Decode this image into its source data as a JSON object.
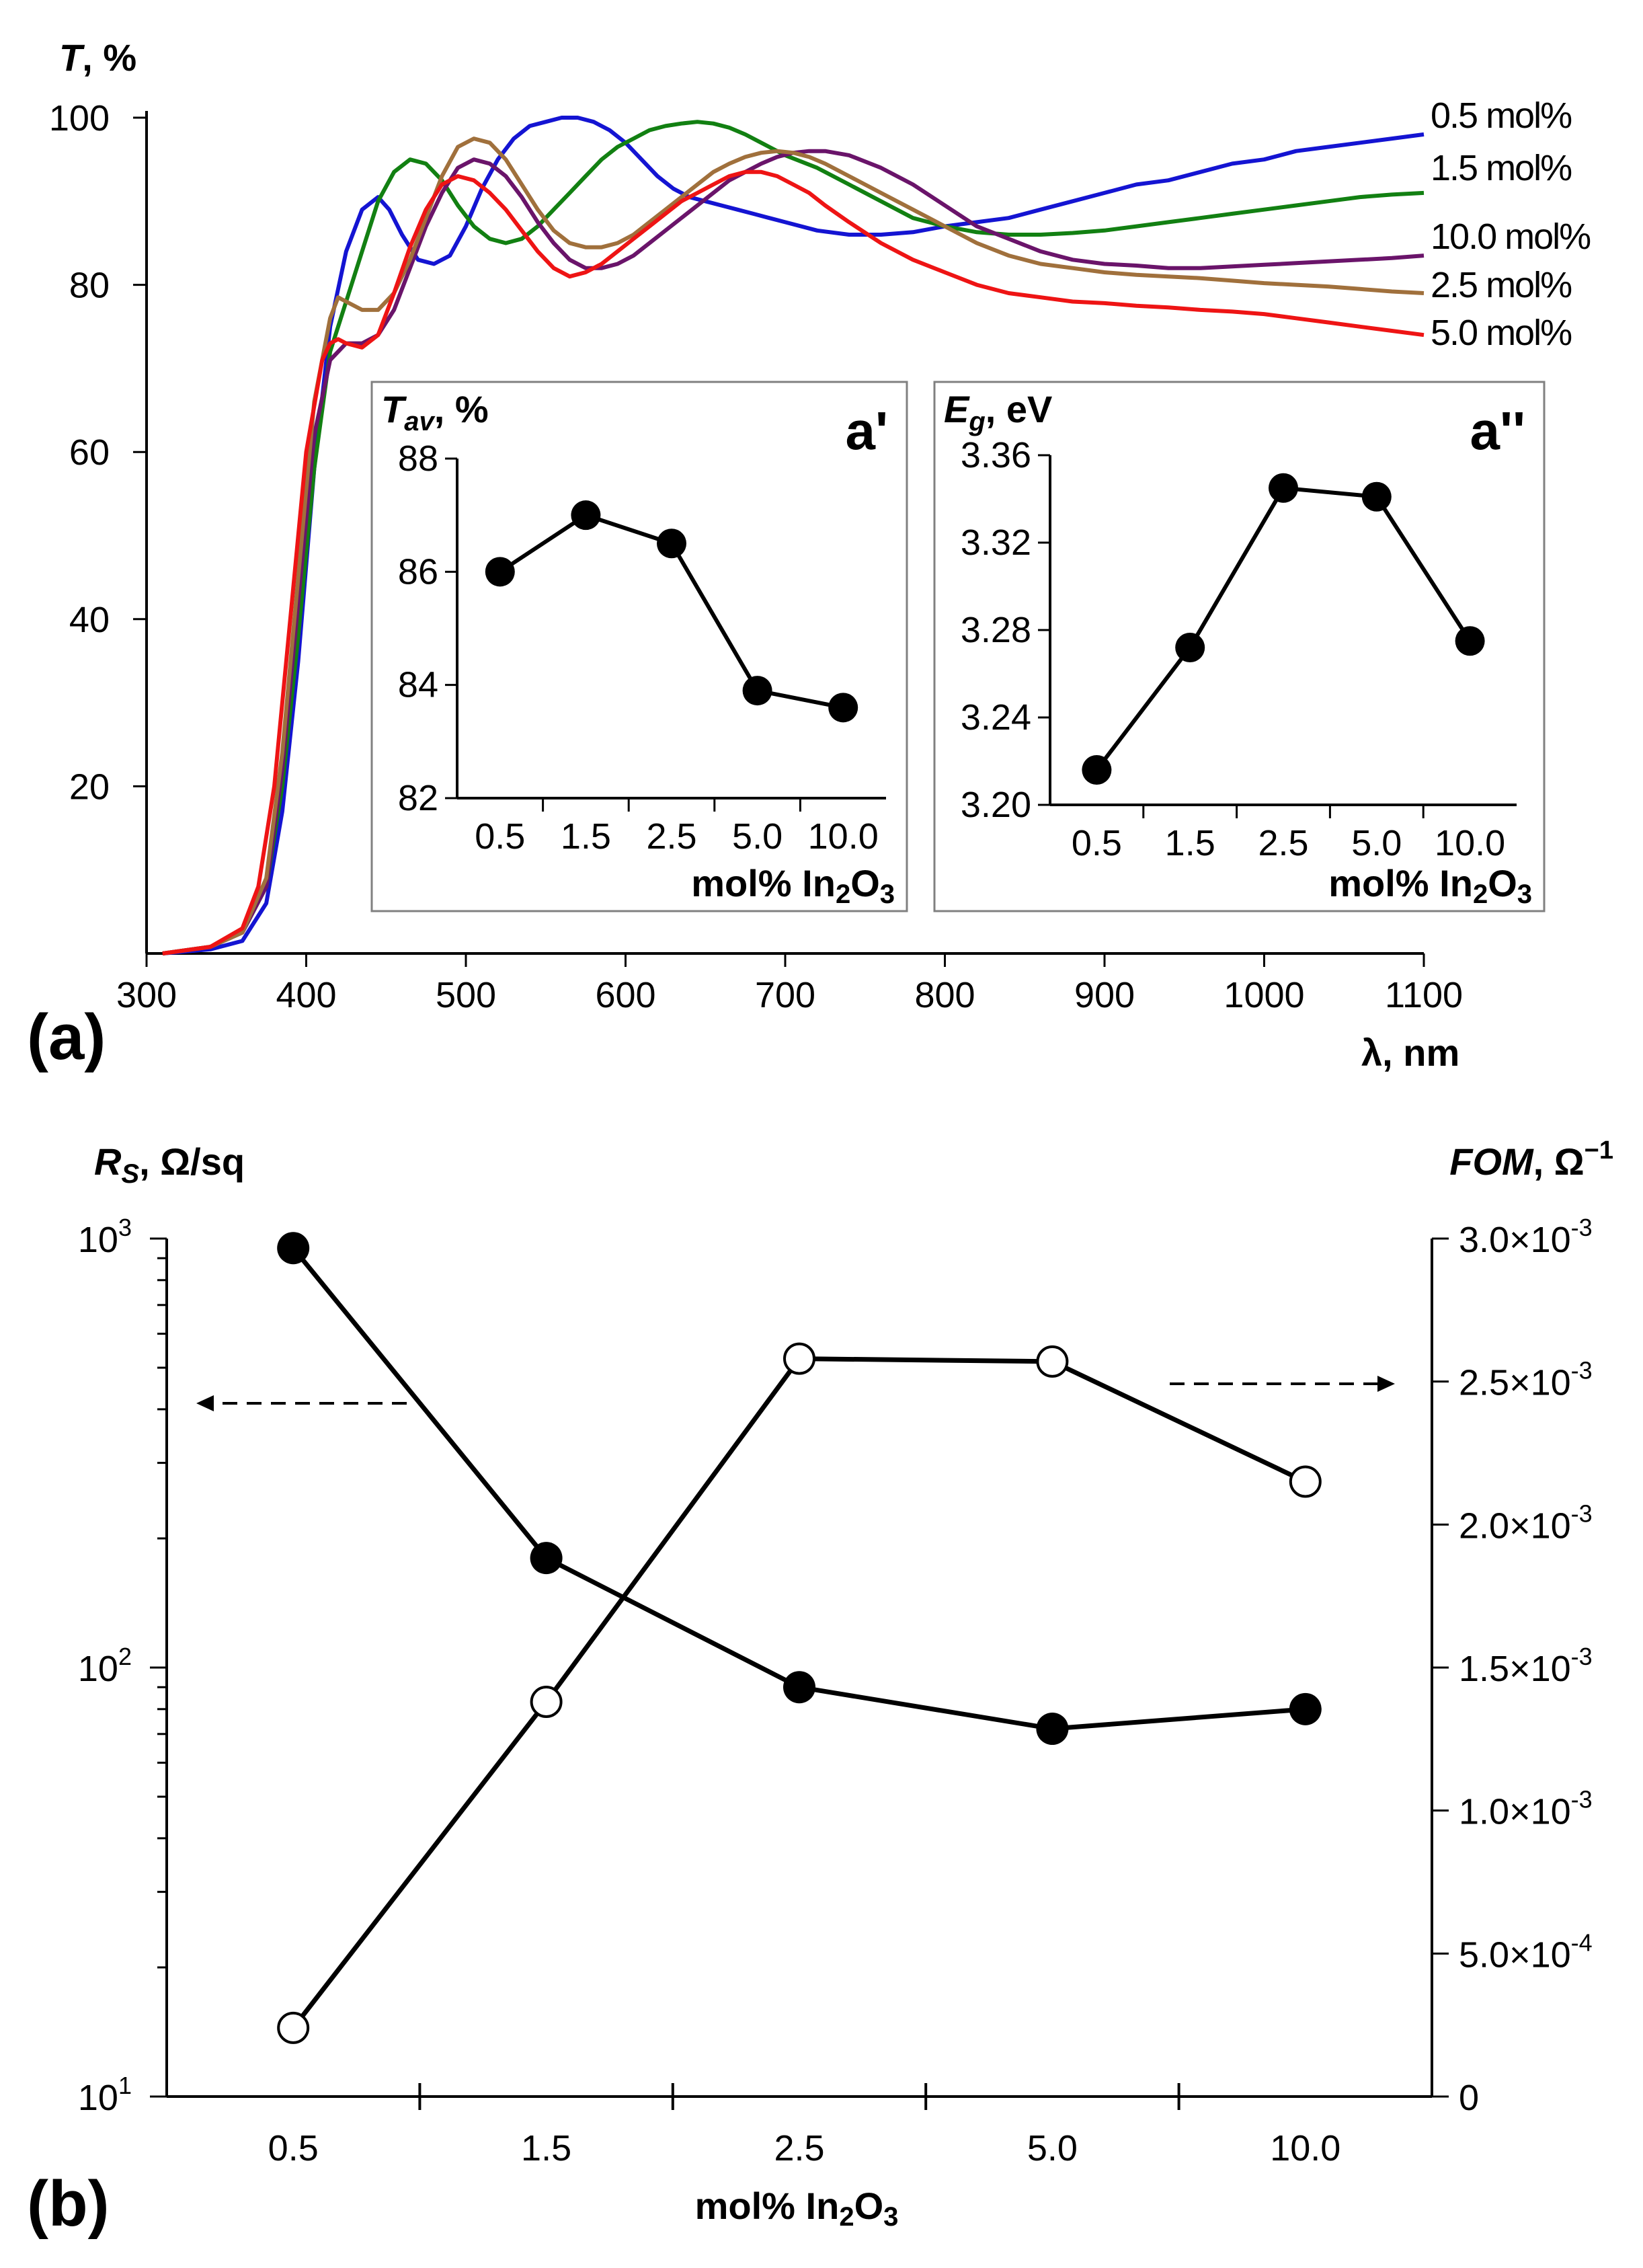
{
  "chart_data": [
    {
      "id": "a",
      "type": "line",
      "panel_label": "(a)",
      "ylabel_main": "T",
      "ylabel_unit": ", %",
      "xlabel": "λ, nm",
      "x_ticks": [
        "300",
        "400",
        "500",
        "600",
        "700",
        "800",
        "900",
        "1000",
        "1100"
      ],
      "y_ticks": [
        "20",
        "40",
        "60",
        "80",
        "100"
      ],
      "xlim": [
        300,
        1100
      ],
      "ylim": [
        0,
        100
      ],
      "series": [
        {
          "name": "0.5 mol%",
          "color": "#1414d2",
          "x": [
            310,
            340,
            360,
            375,
            385,
            395,
            405,
            415,
            425,
            435,
            445,
            452,
            460,
            470,
            480,
            490,
            500,
            510,
            520,
            530,
            540,
            550,
            560,
            570,
            580,
            590,
            600,
            610,
            620,
            630,
            640,
            650,
            660,
            670,
            680,
            690,
            700,
            720,
            740,
            760,
            780,
            800,
            820,
            840,
            860,
            880,
            900,
            920,
            940,
            960,
            980,
            1000,
            1020,
            1040,
            1060,
            1080,
            1100
          ],
          "y": [
            0,
            0.5,
            1.5,
            6,
            17,
            35,
            58,
            75,
            84,
            89,
            90.5,
            89,
            86,
            83,
            82.5,
            83.5,
            87,
            91.5,
            95,
            97.5,
            99,
            99.5,
            100,
            100,
            99.5,
            98.5,
            97,
            95,
            93,
            91.5,
            90.5,
            90,
            89.5,
            89,
            88.5,
            88,
            87.5,
            86.5,
            86,
            86,
            86.3,
            87,
            87.5,
            88,
            89,
            90,
            91,
            92,
            92.5,
            93.5,
            94.5,
            95,
            96,
            96.5,
            97,
            97.5,
            98
          ]
        },
        {
          "name": "1.5 mol%",
          "color": "#128012",
          "x": [
            310,
            340,
            360,
            375,
            385,
            395,
            405,
            415,
            425,
            435,
            445,
            455,
            465,
            475,
            485,
            495,
            505,
            515,
            525,
            535,
            545,
            555,
            565,
            575,
            585,
            595,
            605,
            615,
            625,
            635,
            645,
            655,
            665,
            675,
            685,
            700,
            720,
            740,
            760,
            780,
            800,
            820,
            840,
            860,
            880,
            900,
            920,
            940,
            960,
            980,
            1000,
            1020,
            1040,
            1060,
            1080,
            1100
          ],
          "y": [
            0,
            0.8,
            2.5,
            8,
            20,
            38,
            58,
            72,
            78,
            84,
            90,
            93.5,
            95,
            94.5,
            92.5,
            89.5,
            87,
            85.5,
            85,
            85.5,
            87,
            89,
            91,
            93,
            95,
            96.5,
            97.5,
            98.5,
            99,
            99.3,
            99.5,
            99.3,
            98.8,
            98,
            97,
            95.5,
            94,
            92,
            90,
            88,
            87,
            86.3,
            86,
            86,
            86.2,
            86.5,
            87,
            87.5,
            88,
            88.5,
            89,
            89.5,
            90,
            90.5,
            90.8,
            91
          ]
        },
        {
          "name": "10.0 mol%",
          "color": "#6a146a",
          "x": [
            310,
            340,
            360,
            375,
            385,
            395,
            405,
            415,
            425,
            435,
            445,
            455,
            465,
            475,
            485,
            495,
            505,
            515,
            525,
            535,
            545,
            555,
            565,
            575,
            585,
            595,
            605,
            615,
            625,
            635,
            645,
            655,
            665,
            675,
            685,
            695,
            705,
            715,
            725,
            740,
            760,
            780,
            800,
            820,
            840,
            860,
            880,
            900,
            920,
            940,
            960,
            980,
            1000,
            1020,
            1040,
            1060,
            1080,
            1100
          ],
          "y": [
            0,
            0.8,
            2.5,
            8,
            22,
            42,
            62,
            71,
            73,
            73,
            74,
            77,
            82,
            87,
            91,
            94,
            95,
            94.5,
            93,
            90.5,
            87.5,
            85,
            83,
            82,
            82,
            82.5,
            83.5,
            85,
            86.5,
            88,
            89.5,
            91,
            92.5,
            93.5,
            94.5,
            95.3,
            95.8,
            96,
            96,
            95.5,
            94,
            92,
            89.5,
            87,
            85.5,
            84,
            83,
            82.5,
            82.3,
            82,
            82,
            82.2,
            82.4,
            82.6,
            82.8,
            83,
            83.2,
            83.5
          ]
        },
        {
          "name": "2.5 mol%",
          "color": "#a0703c",
          "x": [
            310,
            340,
            360,
            375,
            385,
            395,
            405,
            415,
            420,
            425,
            435,
            445,
            455,
            465,
            475,
            485,
            495,
            505,
            515,
            525,
            535,
            545,
            555,
            565,
            575,
            585,
            595,
            605,
            615,
            625,
            635,
            645,
            655,
            665,
            675,
            685,
            695,
            705,
            715,
            725,
            740,
            760,
            780,
            800,
            820,
            840,
            860,
            880,
            900,
            920,
            940,
            960,
            980,
            1000,
            1020,
            1040,
            1060,
            1080,
            1100
          ],
          "y": [
            0,
            0.8,
            2.5,
            9,
            24,
            45,
            66,
            76,
            78.5,
            78,
            77,
            77,
            79,
            83,
            88,
            93,
            96.5,
            97.5,
            97,
            95,
            92,
            89,
            86.5,
            85,
            84.5,
            84.5,
            85,
            86,
            87.5,
            89,
            90.5,
            92,
            93.5,
            94.5,
            95.3,
            95.8,
            96,
            95.8,
            95.3,
            94.5,
            93,
            91,
            89,
            87,
            85,
            83.5,
            82.5,
            82,
            81.5,
            81.2,
            81,
            80.8,
            80.5,
            80.2,
            80,
            79.8,
            79.5,
            79.2,
            79
          ]
        },
        {
          "name": "5.0 mol%",
          "color": "#ee1414",
          "x": [
            310,
            340,
            360,
            370,
            380,
            390,
            400,
            410,
            415,
            420,
            425,
            435,
            445,
            455,
            465,
            475,
            485,
            495,
            505,
            515,
            525,
            535,
            545,
            555,
            565,
            575,
            585,
            595,
            605,
            615,
            625,
            635,
            645,
            655,
            665,
            675,
            685,
            695,
            705,
            715,
            725,
            740,
            760,
            780,
            800,
            820,
            840,
            860,
            880,
            900,
            920,
            940,
            960,
            980,
            1000,
            1020,
            1040,
            1060,
            1080,
            1100
          ],
          "y": [
            0,
            0.8,
            3,
            8,
            20,
            40,
            60,
            71,
            73,
            73.5,
            73,
            72.5,
            74,
            79,
            84.5,
            89,
            92,
            93,
            92.5,
            91,
            89,
            86.5,
            84,
            82,
            81,
            81.5,
            82.5,
            84,
            85.5,
            87,
            88.5,
            90,
            91,
            92,
            93,
            93.5,
            93.5,
            93,
            92,
            91,
            89.5,
            87.5,
            85,
            83,
            81.5,
            80,
            79,
            78.5,
            78,
            77.8,
            77.5,
            77.3,
            77,
            76.8,
            76.5,
            76,
            75.5,
            75,
            74.5,
            74
          ]
        }
      ],
      "insets": [
        {
          "id": "a'",
          "label": "a'",
          "ylabel_main": "T",
          "ylabel_sub": "av",
          "ylabel_unit": ", %",
          "xlabel_main": "mol% In",
          "xlabel_sub1": "2",
          "xlabel_mid": "O",
          "xlabel_sub2": "3",
          "categories": [
            "0.5",
            "1.5",
            "2.5",
            "5.0",
            "10.0"
          ],
          "values": [
            86.0,
            87.0,
            86.5,
            83.9,
            83.6
          ],
          "y_ticks": [
            "82",
            "84",
            "86",
            "88"
          ],
          "ylim": [
            82,
            88
          ]
        },
        {
          "id": "a''",
          "label": "a''",
          "ylabel_main": "E",
          "ylabel_sub": "g",
          "ylabel_unit": ", eV",
          "xlabel_main": "mol% In",
          "xlabel_sub1": "2",
          "xlabel_mid": "O",
          "xlabel_sub2": "3",
          "categories": [
            "0.5",
            "1.5",
            "2.5",
            "5.0",
            "10.0"
          ],
          "values": [
            3.216,
            3.272,
            3.345,
            3.341,
            3.275
          ],
          "y_ticks": [
            "3.20",
            "3.24",
            "3.28",
            "3.32",
            "3.36"
          ],
          "ylim": [
            3.2,
            3.36
          ]
        }
      ]
    },
    {
      "id": "b",
      "type": "line",
      "panel_label": "(b)",
      "categories": [
        "0.5",
        "1.5",
        "2.5",
        "5.0",
        "10.0"
      ],
      "xlabel_main": "mol% In",
      "xlabel_sub1": "2",
      "xlabel_mid": "O",
      "xlabel_sub2": "3",
      "left_axis": {
        "label_main": "R",
        "label_sub": "S",
        "label_unit": ", Ω/sq",
        "scale": "log",
        "ylim": [
          10,
          1000
        ],
        "tick_labels": [
          {
            "base": "10",
            "exp": "3"
          },
          {
            "base": "10",
            "exp": "2"
          },
          {
            "base": "10",
            "exp": "1"
          }
        ]
      },
      "right_axis": {
        "label_main": "FOM",
        "label_unit": ", Ω",
        "label_exp": "−1",
        "scale": "linear",
        "ylim": [
          0,
          0.003
        ],
        "tick_labels": [
          {
            "base": "3.0×10",
            "exp": "-3"
          },
          {
            "base": "2.5×10",
            "exp": "-3"
          },
          {
            "base": "2.0×10",
            "exp": "-3"
          },
          {
            "base": "1.5×10",
            "exp": "-3"
          },
          {
            "base": "1.0×10",
            "exp": "-3"
          },
          {
            "base": "5.0×10",
            "exp": "-4"
          },
          {
            "base": "0",
            "exp": ""
          }
        ]
      },
      "series": [
        {
          "name": "Rs",
          "axis": "left",
          "marker": "filled",
          "values": [
            950,
            180,
            90,
            72,
            80
          ]
        },
        {
          "name": "FOM",
          "axis": "right",
          "marker": "open",
          "values": [
            0.00024,
            0.00138,
            0.00258,
            0.00257,
            0.00215
          ]
        }
      ]
    }
  ]
}
